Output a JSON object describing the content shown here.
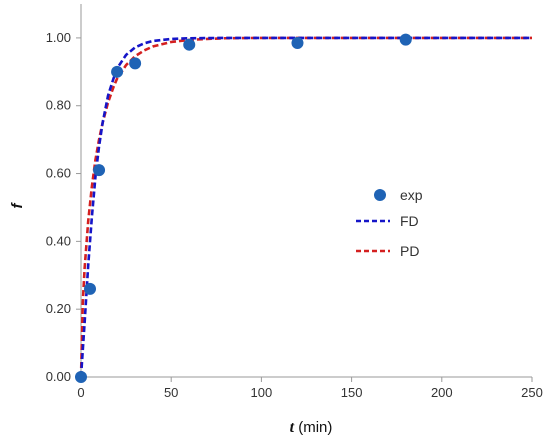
{
  "chart_data": {
    "type": "line",
    "xlabel_var": "t",
    "xlabel_unit": " (min)",
    "ylabel": "f",
    "xlim": [
      0,
      250
    ],
    "ylim": [
      0,
      1.1
    ],
    "x_ticks": [
      "0",
      "50",
      "100",
      "150",
      "200",
      "250"
    ],
    "y_ticks": [
      "0.00",
      "0.20",
      "0.40",
      "0.60",
      "0.80",
      "1.00"
    ],
    "grid": false,
    "legend_position": "right-center",
    "series": [
      {
        "name": "exp",
        "kind": "scatter",
        "color": "#1f63b5",
        "x": [
          0,
          5,
          10,
          20,
          30,
          60,
          120,
          180
        ],
        "y": [
          0.0,
          0.26,
          0.61,
          0.9,
          0.925,
          0.98,
          0.985,
          0.995
        ]
      },
      {
        "name": "FD",
        "kind": "line",
        "style": "dashed",
        "color": "#1515c8",
        "x": [
          0,
          2,
          4,
          6,
          8,
          10,
          12,
          15,
          18,
          20,
          25,
          30,
          35,
          40,
          50,
          60,
          80,
          100,
          150,
          200,
          250
        ],
        "y": [
          0.0,
          0.16,
          0.33,
          0.47,
          0.59,
          0.68,
          0.75,
          0.83,
          0.88,
          0.91,
          0.95,
          0.972,
          0.984,
          0.991,
          0.997,
          0.999,
          1.0,
          1.0,
          1.0,
          1.0,
          1.0
        ]
      },
      {
        "name": "PD",
        "kind": "line",
        "style": "dashed",
        "color": "#d42020",
        "x": [
          0,
          1,
          2,
          4,
          6,
          8,
          10,
          12,
          15,
          18,
          20,
          25,
          30,
          35,
          40,
          50,
          60,
          70,
          80,
          100,
          150,
          200,
          250
        ],
        "y": [
          0.0,
          0.22,
          0.32,
          0.46,
          0.56,
          0.64,
          0.7,
          0.75,
          0.81,
          0.855,
          0.88,
          0.92,
          0.946,
          0.963,
          0.975,
          0.988,
          0.994,
          0.997,
          0.999,
          1.0,
          1.0,
          1.0,
          1.0
        ]
      }
    ]
  }
}
